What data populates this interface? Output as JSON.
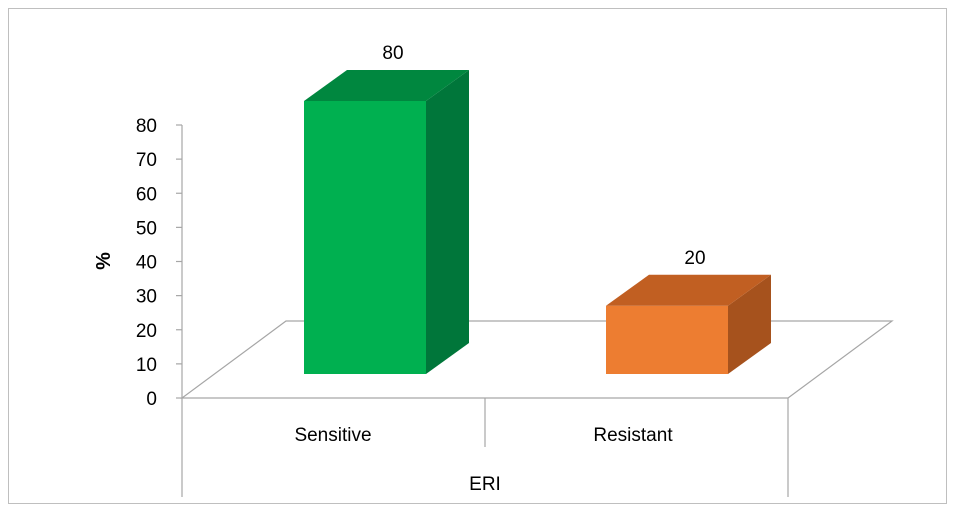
{
  "chart_data": {
    "type": "bar",
    "style": "3d-column",
    "categories": [
      "Sensitive",
      "Resistant"
    ],
    "values": [
      80,
      20
    ],
    "data_labels": [
      "80",
      "20"
    ],
    "xlabel": "ERI",
    "ylabel": "%",
    "ylim": [
      0,
      80
    ],
    "yticks": [
      0,
      10,
      20,
      30,
      40,
      50,
      60,
      70,
      80
    ],
    "grid": false,
    "legend": "none",
    "colors": {
      "Sensitive": {
        "front": "#00b050",
        "side": "#00763a",
        "top": "#00873f"
      },
      "Resistant": {
        "front": "#ed7d31",
        "side": "#a6521d",
        "top": "#c15f22"
      },
      "floor_line": "#a6a6a6",
      "frame_border": "#bfbfbf"
    }
  }
}
